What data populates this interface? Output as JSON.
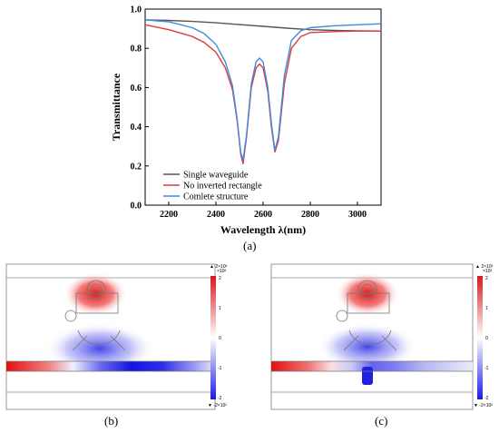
{
  "chart_data": {
    "type": "line",
    "title": "",
    "xlabel": "Wavelength λ(nm)",
    "ylabel": "Transmittance",
    "xlim": [
      2100,
      3100
    ],
    "ylim": [
      0,
      1.0
    ],
    "xticks": [
      "2200",
      "2400",
      "2600",
      "2800",
      "3000"
    ],
    "yticks": [
      "0.0",
      "0.2",
      "0.4",
      "0.6",
      "0.8",
      "1.0"
    ],
    "legend_position": "bottom-left",
    "series": [
      {
        "name": "Single waveguide",
        "color": "#555555",
        "x": [
          2100,
          2200,
          2300,
          2400,
          2500,
          2600,
          2700,
          2800,
          2900,
          3000,
          3100
        ],
        "y": [
          0.945,
          0.942,
          0.937,
          0.93,
          0.921,
          0.912,
          0.903,
          0.895,
          0.891,
          0.889,
          0.888
        ]
      },
      {
        "name": "No inverted rectangle",
        "color": "#e03c3c",
        "x": [
          2100,
          2200,
          2300,
          2350,
          2400,
          2440,
          2470,
          2490,
          2505,
          2515,
          2530,
          2550,
          2570,
          2585,
          2600,
          2620,
          2635,
          2650,
          2665,
          2690,
          2720,
          2760,
          2800,
          2900,
          3000,
          3100
        ],
        "y": [
          0.92,
          0.895,
          0.86,
          0.83,
          0.78,
          0.7,
          0.59,
          0.43,
          0.26,
          0.21,
          0.35,
          0.6,
          0.7,
          0.72,
          0.7,
          0.58,
          0.4,
          0.27,
          0.33,
          0.62,
          0.8,
          0.86,
          0.88,
          0.885,
          0.888,
          0.888
        ]
      },
      {
        "name": "Comlete structure",
        "color": "#3f8be0",
        "x": [
          2100,
          2200,
          2300,
          2350,
          2400,
          2440,
          2470,
          2490,
          2505,
          2515,
          2530,
          2550,
          2570,
          2585,
          2600,
          2620,
          2635,
          2650,
          2665,
          2690,
          2720,
          2760,
          2800,
          2900,
          3000,
          3100
        ],
        "y": [
          0.945,
          0.935,
          0.905,
          0.875,
          0.82,
          0.73,
          0.61,
          0.44,
          0.27,
          0.23,
          0.36,
          0.62,
          0.73,
          0.75,
          0.73,
          0.6,
          0.42,
          0.28,
          0.35,
          0.66,
          0.84,
          0.89,
          0.905,
          0.915,
          0.92,
          0.925
        ]
      }
    ]
  },
  "figure": {
    "label_a": "(a)",
    "label_b": "(b)",
    "label_c": "(c)"
  },
  "colorbar": {
    "top_label": "▲ 2×10²",
    "unit_label": "×10²",
    "ticks": [
      "2",
      "1",
      "0",
      "-1",
      "-2"
    ],
    "bottom_label": "▼ -2×10²",
    "positive_color": "#d7191c",
    "negative_color": "#1a1ae6"
  }
}
